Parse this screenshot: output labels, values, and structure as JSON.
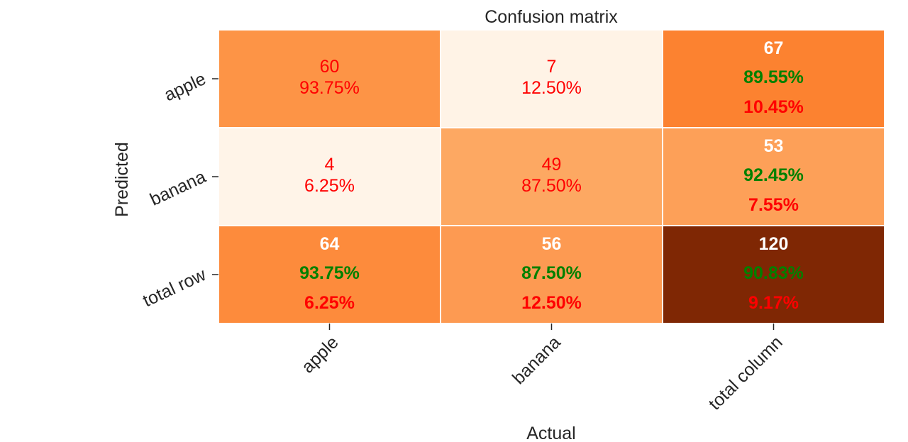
{
  "chart_data": {
    "type": "heatmap",
    "title": "Confusion matrix",
    "xlabel": "Actual",
    "ylabel": "Predicted",
    "x_categories": [
      "apple",
      "banana",
      "total column"
    ],
    "y_categories": [
      "apple",
      "banana",
      "total row"
    ],
    "colormap": "Oranges",
    "cells": [
      {
        "row": 0,
        "col": 0,
        "count": "60",
        "pct": "93.75%",
        "fill": "#fd9446",
        "kind": "cell"
      },
      {
        "row": 0,
        "col": 1,
        "count": "7",
        "pct": "12.50%",
        "fill": "#fff3e6",
        "kind": "cell"
      },
      {
        "row": 0,
        "col": 2,
        "count": "67",
        "pct_ok": "89.55%",
        "pct_err": "10.45%",
        "fill": "#fc8230",
        "kind": "total"
      },
      {
        "row": 1,
        "col": 0,
        "count": "4",
        "pct": "6.25%",
        "fill": "#fff4e8",
        "kind": "cell"
      },
      {
        "row": 1,
        "col": 1,
        "count": "49",
        "pct": "87.50%",
        "fill": "#fda862",
        "kind": "cell"
      },
      {
        "row": 1,
        "col": 2,
        "count": "53",
        "pct_ok": "92.45%",
        "pct_err": "7.55%",
        "fill": "#fda058",
        "kind": "total"
      },
      {
        "row": 2,
        "col": 0,
        "count": "64",
        "pct_ok": "93.75%",
        "pct_err": "6.25%",
        "fill": "#fd8b3c",
        "kind": "total"
      },
      {
        "row": 2,
        "col": 1,
        "count": "56",
        "pct_ok": "87.50%",
        "pct_err": "12.50%",
        "fill": "#fd9a52",
        "kind": "total"
      },
      {
        "row": 2,
        "col": 2,
        "count": "120",
        "pct_ok": "90.83%",
        "pct_err": "9.17%",
        "fill": "#7f2704",
        "kind": "total"
      }
    ],
    "text_colors": {
      "cell": "#ff0000",
      "count_total": "#ffffff",
      "ok": "#008000",
      "err": "#ff0000"
    }
  }
}
